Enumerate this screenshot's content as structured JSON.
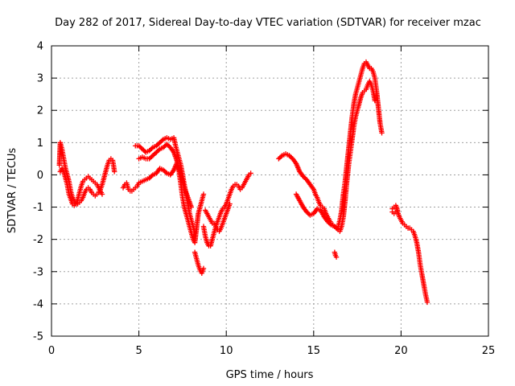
{
  "chart_data": {
    "type": "scatter",
    "title": "Day 282 of 2017, Sidereal Day-to-day VTEC variation (SDTVAR) for receiver mzac",
    "xlabel": "GPS time / hours",
    "ylabel": "SDTVAR / TECUs",
    "xlim": [
      0,
      25
    ],
    "ylim": [
      -5,
      4
    ],
    "xticks": [
      "0",
      "5",
      "10",
      "15",
      "20",
      "25"
    ],
    "yticks": [
      "-5",
      "-4",
      "-3",
      "-2",
      "-1",
      "0",
      "1",
      "2",
      "3",
      "4"
    ],
    "grid": true,
    "marker": "+",
    "color": "#ff0000",
    "segments": [
      [
        [
          0.45,
          0.3
        ],
        [
          0.5,
          1.0
        ],
        [
          0.6,
          0.8
        ],
        [
          0.7,
          0.5
        ],
        [
          0.8,
          0.2
        ],
        [
          0.9,
          0.0
        ],
        [
          1.0,
          -0.2
        ],
        [
          1.1,
          -0.5
        ],
        [
          1.2,
          -0.7
        ],
        [
          1.3,
          -0.8
        ],
        [
          1.4,
          -0.9
        ],
        [
          1.5,
          -0.9
        ],
        [
          1.6,
          -0.85
        ],
        [
          1.7,
          -0.8
        ],
        [
          1.8,
          -0.7
        ],
        [
          1.9,
          -0.55
        ],
        [
          2.0,
          -0.45
        ],
        [
          2.1,
          -0.4
        ],
        [
          2.2,
          -0.45
        ],
        [
          2.3,
          -0.55
        ],
        [
          2.4,
          -0.6
        ],
        [
          2.5,
          -0.65
        ],
        [
          2.6,
          -0.6
        ],
        [
          2.7,
          -0.55
        ],
        [
          2.8,
          -0.45
        ],
        [
          2.9,
          -0.3
        ],
        [
          3.0,
          -0.1
        ],
        [
          3.1,
          0.1
        ],
        [
          3.2,
          0.3
        ],
        [
          3.3,
          0.45
        ],
        [
          3.4,
          0.5
        ],
        [
          3.5,
          0.45
        ],
        [
          3.55,
          0.3
        ],
        [
          3.6,
          0.1
        ]
      ],
      [
        [
          0.5,
          0.1
        ],
        [
          0.6,
          0.2
        ],
        [
          0.7,
          0.1
        ],
        [
          0.8,
          -0.1
        ],
        [
          0.9,
          -0.3
        ],
        [
          1.0,
          -0.6
        ],
        [
          1.1,
          -0.75
        ],
        [
          1.2,
          -0.9
        ],
        [
          1.3,
          -0.95
        ],
        [
          1.4,
          -0.9
        ],
        [
          1.5,
          -0.75
        ],
        [
          1.6,
          -0.55
        ],
        [
          1.7,
          -0.35
        ],
        [
          1.8,
          -0.2
        ],
        [
          1.9,
          -0.15
        ],
        [
          2.0,
          -0.1
        ],
        [
          2.1,
          -0.05
        ],
        [
          2.2,
          -0.1
        ],
        [
          2.3,
          -0.15
        ],
        [
          2.4,
          -0.2
        ],
        [
          2.5,
          -0.25
        ],
        [
          2.6,
          -0.3
        ],
        [
          2.7,
          -0.4
        ],
        [
          2.8,
          -0.5
        ],
        [
          2.9,
          -0.6
        ]
      ],
      [
        [
          4.1,
          -0.4
        ],
        [
          4.2,
          -0.3
        ],
        [
          4.3,
          -0.25
        ],
        [
          4.4,
          -0.45
        ],
        [
          4.5,
          -0.5
        ],
        [
          4.6,
          -0.5
        ],
        [
          4.7,
          -0.45
        ],
        [
          4.8,
          -0.4
        ],
        [
          4.9,
          -0.35
        ],
        [
          5.0,
          -0.25
        ],
        [
          5.2,
          -0.2
        ],
        [
          5.4,
          -0.15
        ],
        [
          5.6,
          -0.1
        ],
        [
          5.8,
          0.0
        ],
        [
          6.0,
          0.05
        ],
        [
          6.2,
          0.2
        ],
        [
          6.4,
          0.15
        ],
        [
          6.6,
          0.05
        ],
        [
          6.8,
          0.0
        ],
        [
          7.0,
          0.15
        ],
        [
          7.2,
          0.4
        ],
        [
          7.3,
          0.1
        ],
        [
          7.4,
          -0.3
        ],
        [
          7.5,
          -0.7
        ],
        [
          7.6,
          -1.0
        ],
        [
          7.7,
          -1.2
        ],
        [
          7.8,
          -1.4
        ],
        [
          7.9,
          -1.6
        ],
        [
          8.0,
          -1.8
        ],
        [
          8.1,
          -2.0
        ],
        [
          8.2,
          -2.1
        ],
        [
          8.4,
          -1.2
        ],
        [
          8.5,
          -1.0
        ],
        [
          8.6,
          -0.8
        ],
        [
          8.7,
          -0.6
        ]
      ],
      [
        [
          4.8,
          0.9
        ],
        [
          5.0,
          0.9
        ],
        [
          5.2,
          0.8
        ],
        [
          5.4,
          0.7
        ],
        [
          5.6,
          0.75
        ],
        [
          5.8,
          0.85
        ],
        [
          6.0,
          0.9
        ],
        [
          6.2,
          1.0
        ],
        [
          6.4,
          1.1
        ],
        [
          6.6,
          1.15
        ],
        [
          6.8,
          1.1
        ],
        [
          7.0,
          1.15
        ],
        [
          7.1,
          0.9
        ],
        [
          7.2,
          0.7
        ],
        [
          7.3,
          0.5
        ],
        [
          7.4,
          0.3
        ],
        [
          7.5,
          0.0
        ],
        [
          7.6,
          -0.3
        ],
        [
          7.7,
          -0.6
        ],
        [
          7.8,
          -0.9
        ],
        [
          7.9,
          -1.2
        ],
        [
          8.0,
          -1.4
        ],
        [
          8.1,
          -1.6
        ],
        [
          8.2,
          -1.8
        ]
      ],
      [
        [
          5.0,
          0.5
        ],
        [
          5.2,
          0.55
        ],
        [
          5.4,
          0.5
        ],
        [
          5.6,
          0.5
        ],
        [
          5.8,
          0.6
        ],
        [
          6.0,
          0.7
        ],
        [
          6.2,
          0.8
        ],
        [
          6.4,
          0.85
        ],
        [
          6.6,
          0.95
        ],
        [
          6.8,
          0.85
        ],
        [
          7.0,
          0.7
        ],
        [
          7.2,
          0.4
        ],
        [
          7.4,
          0.0
        ],
        [
          7.6,
          -0.4
        ],
        [
          7.8,
          -0.7
        ],
        [
          8.0,
          -1.0
        ]
      ],
      [
        [
          8.2,
          -2.4
        ],
        [
          8.3,
          -2.6
        ],
        [
          8.4,
          -2.8
        ],
        [
          8.5,
          -2.95
        ],
        [
          8.6,
          -3.05
        ],
        [
          8.7,
          -2.9
        ]
      ],
      [
        [
          8.7,
          -1.6
        ],
        [
          8.8,
          -1.9
        ],
        [
          8.9,
          -2.1
        ],
        [
          9.0,
          -2.2
        ],
        [
          9.1,
          -2.2
        ],
        [
          9.2,
          -2.0
        ],
        [
          9.3,
          -1.8
        ],
        [
          9.4,
          -1.6
        ],
        [
          9.5,
          -1.45
        ],
        [
          9.6,
          -1.3
        ],
        [
          9.7,
          -1.15
        ],
        [
          9.8,
          -1.05
        ],
        [
          9.9,
          -1.0
        ],
        [
          10.0,
          -0.9
        ],
        [
          10.1,
          -0.75
        ],
        [
          10.2,
          -0.6
        ],
        [
          10.3,
          -0.45
        ],
        [
          10.4,
          -0.35
        ],
        [
          10.5,
          -0.3
        ],
        [
          10.6,
          -0.3
        ],
        [
          10.7,
          -0.35
        ],
        [
          10.8,
          -0.45
        ],
        [
          10.9,
          -0.4
        ],
        [
          11.0,
          -0.3
        ],
        [
          11.1,
          -0.2
        ],
        [
          11.2,
          -0.1
        ],
        [
          11.3,
          0.0
        ],
        [
          11.4,
          0.05
        ]
      ],
      [
        [
          8.8,
          -1.1
        ],
        [
          8.9,
          -1.2
        ],
        [
          9.0,
          -1.3
        ],
        [
          9.1,
          -1.4
        ],
        [
          9.2,
          -1.5
        ],
        [
          9.3,
          -1.5
        ],
        [
          9.4,
          -1.6
        ],
        [
          9.5,
          -1.7
        ],
        [
          9.6,
          -1.75
        ],
        [
          9.7,
          -1.65
        ],
        [
          9.8,
          -1.5
        ],
        [
          9.9,
          -1.35
        ],
        [
          10.0,
          -1.2
        ],
        [
          10.1,
          -1.05
        ],
        [
          10.2,
          -0.9
        ]
      ],
      [
        [
          13.0,
          0.5
        ],
        [
          13.2,
          0.6
        ],
        [
          13.4,
          0.65
        ],
        [
          13.6,
          0.6
        ],
        [
          13.8,
          0.5
        ],
        [
          14.0,
          0.35
        ],
        [
          14.2,
          0.1
        ],
        [
          14.4,
          -0.05
        ],
        [
          14.6,
          -0.15
        ],
        [
          14.8,
          -0.3
        ],
        [
          15.0,
          -0.45
        ],
        [
          15.1,
          -0.6
        ],
        [
          15.2,
          -0.7
        ],
        [
          15.3,
          -0.85
        ],
        [
          15.4,
          -0.95
        ],
        [
          15.5,
          -1.0
        ],
        [
          15.6,
          -1.05
        ],
        [
          15.7,
          -1.2
        ],
        [
          15.8,
          -1.3
        ],
        [
          15.9,
          -1.4
        ],
        [
          16.0,
          -1.5
        ],
        [
          16.1,
          -1.55
        ],
        [
          16.2,
          -1.6
        ],
        [
          16.3,
          -1.65
        ],
        [
          16.4,
          -1.6
        ],
        [
          16.5,
          -1.4
        ],
        [
          16.6,
          -1.1
        ],
        [
          16.7,
          -0.6
        ],
        [
          16.8,
          -0.2
        ],
        [
          16.9,
          0.3
        ],
        [
          17.0,
          0.8
        ],
        [
          17.1,
          1.3
        ],
        [
          17.2,
          1.8
        ],
        [
          17.3,
          2.2
        ],
        [
          17.4,
          2.5
        ],
        [
          17.5,
          2.7
        ],
        [
          17.6,
          2.9
        ],
        [
          17.7,
          3.1
        ],
        [
          17.8,
          3.3
        ],
        [
          17.9,
          3.45
        ],
        [
          18.0,
          3.5
        ],
        [
          18.1,
          3.4
        ],
        [
          18.2,
          3.3
        ],
        [
          18.3,
          3.3
        ],
        [
          18.4,
          3.2
        ],
        [
          18.5,
          3.0
        ],
        [
          18.6,
          2.6
        ],
        [
          18.7,
          2.1
        ],
        [
          18.8,
          1.6
        ],
        [
          18.9,
          1.3
        ]
      ],
      [
        [
          14.0,
          -0.6
        ],
        [
          14.2,
          -0.8
        ],
        [
          14.4,
          -1.0
        ],
        [
          14.6,
          -1.15
        ],
        [
          14.8,
          -1.25
        ],
        [
          15.0,
          -1.2
        ],
        [
          15.2,
          -1.05
        ],
        [
          15.4,
          -1.1
        ],
        [
          15.6,
          -1.3
        ],
        [
          15.8,
          -1.45
        ],
        [
          16.0,
          -1.55
        ],
        [
          16.2,
          -1.6
        ],
        [
          16.4,
          -1.7
        ],
        [
          16.5,
          -1.75
        ],
        [
          16.6,
          -1.6
        ],
        [
          16.7,
          -1.3
        ],
        [
          16.8,
          -0.8
        ],
        [
          16.9,
          -0.2
        ],
        [
          17.0,
          0.3
        ],
        [
          17.1,
          0.7
        ],
        [
          17.2,
          1.1
        ],
        [
          17.3,
          1.5
        ],
        [
          17.4,
          1.8
        ],
        [
          17.5,
          2.0
        ],
        [
          17.6,
          2.2
        ],
        [
          17.7,
          2.4
        ],
        [
          17.8,
          2.55
        ],
        [
          17.9,
          2.6
        ],
        [
          18.0,
          2.65
        ],
        [
          18.1,
          2.8
        ],
        [
          18.2,
          2.9
        ],
        [
          18.3,
          2.8
        ],
        [
          18.4,
          2.6
        ],
        [
          18.5,
          2.3
        ]
      ],
      [
        [
          16.2,
          -2.4
        ],
        [
          16.25,
          -2.5
        ],
        [
          16.3,
          -2.55
        ]
      ],
      [
        [
          19.5,
          -1.05
        ],
        [
          19.6,
          -1.0
        ],
        [
          19.7,
          -0.95
        ],
        [
          19.75,
          -1.0
        ],
        [
          19.8,
          -1.15
        ],
        [
          19.9,
          -1.3
        ],
        [
          20.0,
          -1.4
        ],
        [
          20.1,
          -1.5
        ],
        [
          20.2,
          -1.55
        ],
        [
          20.3,
          -1.6
        ],
        [
          20.4,
          -1.65
        ],
        [
          20.5,
          -1.65
        ],
        [
          20.6,
          -1.7
        ],
        [
          20.7,
          -1.75
        ],
        [
          20.8,
          -1.9
        ],
        [
          20.9,
          -2.1
        ],
        [
          21.0,
          -2.4
        ],
        [
          21.1,
          -2.8
        ],
        [
          21.2,
          -3.1
        ],
        [
          21.3,
          -3.4
        ],
        [
          21.4,
          -3.7
        ],
        [
          21.5,
          -3.95
        ]
      ],
      [
        [
          19.5,
          -1.15
        ],
        [
          19.6,
          -1.2
        ],
        [
          19.7,
          -1.15
        ],
        [
          19.8,
          -1.1
        ]
      ]
    ]
  }
}
